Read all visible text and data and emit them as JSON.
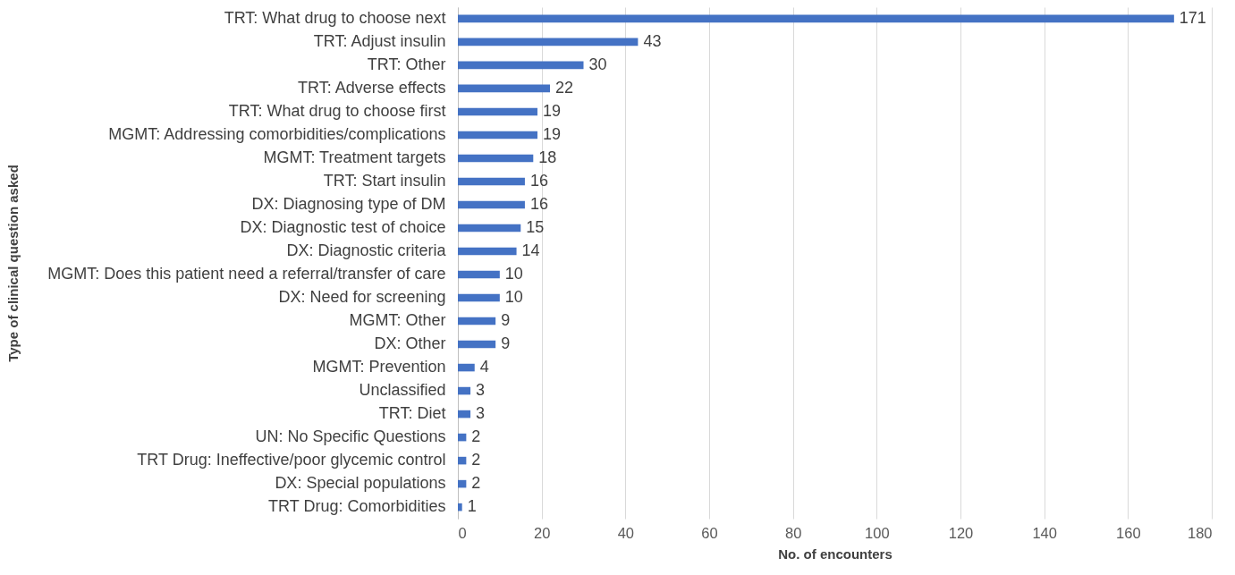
{
  "chart_data": {
    "type": "bar",
    "orientation": "horizontal",
    "xlabel": "No. of encounters",
    "ylabel": "Type of clinical question asked",
    "categories": [
      "TRT: What drug to choose next",
      "TRT: Adjust insulin",
      "TRT: Other",
      "TRT: Adverse effects",
      "TRT: What drug to choose first",
      "MGMT: Addressing comorbidities/complications",
      "MGMT: Treatment targets",
      "TRT: Start insulin",
      "DX: Diagnosing type of DM",
      "DX: Diagnostic test of choice",
      "DX: Diagnostic criteria",
      "MGMT: Does this patient need a referral/transfer of care",
      "DX: Need for screening",
      "MGMT: Other",
      "DX: Other",
      "MGMT: Prevention",
      "Unclassified",
      "TRT: Diet",
      "UN: No Specific Questions",
      "TRT Drug: Ineffective/poor glycemic control",
      "DX: Special populations",
      "TRT Drug: Comorbidities"
    ],
    "values": [
      171,
      43,
      30,
      22,
      19,
      19,
      18,
      16,
      16,
      15,
      14,
      10,
      10,
      9,
      9,
      4,
      3,
      3,
      2,
      2,
      2,
      1
    ],
    "color": "#4472c4",
    "xlim": [
      0,
      180
    ],
    "xticks": [
      0,
      20,
      40,
      60,
      80,
      100,
      120,
      140,
      160,
      180
    ],
    "grid": "x",
    "data_labels": true
  }
}
